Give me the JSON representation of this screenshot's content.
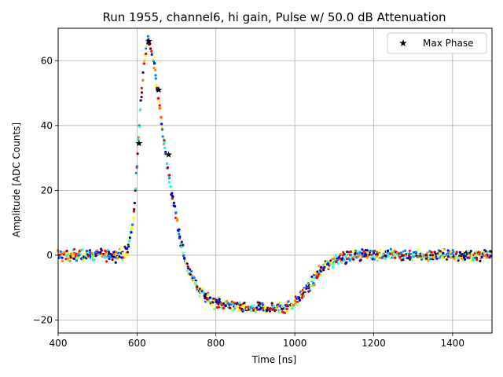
{
  "chart_data": {
    "type": "scatter",
    "title": "Run 1955, channel6, hi gain, Pulse w/ 50.0 dB Attenuation",
    "xlabel": "Time [ns]",
    "ylabel": "Amplitude [ADC Counts]",
    "xlim": [
      400,
      1500
    ],
    "ylim": [
      -24,
      70
    ],
    "xticks": [
      400,
      600,
      800,
      1000,
      1200,
      1400
    ],
    "yticks": [
      -20,
      0,
      20,
      40,
      60
    ],
    "grid": true,
    "legend_position": "top-right",
    "colormap": [
      "#00007f",
      "#0000ff",
      "#0080ff",
      "#00ffff",
      "#80ff80",
      "#ffff00",
      "#ff8000",
      "#ff0000",
      "#7f0000"
    ],
    "pulse_shape": {
      "x": [
        400,
        560,
        575,
        590,
        600,
        610,
        620,
        628,
        636,
        645,
        655,
        665,
        675,
        690,
        705,
        720,
        740,
        760,
        790,
        820,
        860,
        900,
        940,
        980,
        1000,
        1020,
        1040,
        1060,
        1080,
        1100,
        1130,
        1160,
        1200,
        1300,
        1400,
        1500
      ],
      "y": [
        0,
        0,
        1,
        10,
        28,
        48,
        62,
        66,
        64,
        57,
        48,
        38,
        29,
        18,
        8,
        -1,
        -7,
        -11,
        -14.5,
        -15.5,
        -16,
        -16.5,
        -16.5,
        -16,
        -14.5,
        -12,
        -9,
        -5.5,
        -3,
        -1.5,
        -0.5,
        0,
        0.3,
        0,
        0,
        0
      ]
    },
    "series": [
      {
        "name": "Max Phase",
        "marker": "star",
        "x": [
          605,
          630,
          655,
          680
        ],
        "y": [
          34.5,
          66,
          51,
          31
        ]
      }
    ]
  }
}
